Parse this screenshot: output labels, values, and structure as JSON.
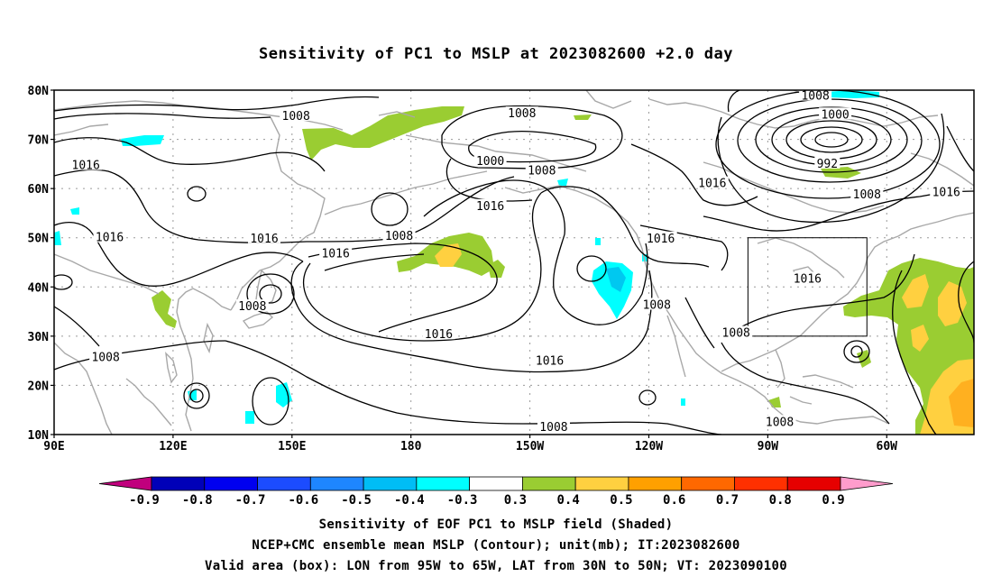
{
  "title": "Sensitivity of PC1 to MSLP at 2023082600 +2.0 day",
  "captions": [
    "Sensitivity of EOF PC1 to MSLP field (Shaded)",
    "NCEP+CMC ensemble mean MSLP (Contour); unit(mb); IT:2023082600",
    "Valid area (box): LON from 95W to 65W, LAT from 30N to 50N; VT: 2023090100"
  ],
  "map": {
    "lat_ticks": [
      {
        "lat": 80,
        "label": "80N"
      },
      {
        "lat": 70,
        "label": "70N"
      },
      {
        "lat": 60,
        "label": "60N"
      },
      {
        "lat": 50,
        "label": "50N"
      },
      {
        "lat": 40,
        "label": "40N"
      },
      {
        "lat": 30,
        "label": "30N"
      },
      {
        "lat": 20,
        "label": "20N"
      },
      {
        "lat": 10,
        "label": "10N"
      }
    ],
    "lon_ticks": [
      {
        "lon": 90,
        "label": "90E"
      },
      {
        "lon": 120,
        "label": "120E"
      },
      {
        "lon": 150,
        "label": "150E"
      },
      {
        "lon": 180,
        "label": "180"
      },
      {
        "lon": 210,
        "label": "150W"
      },
      {
        "lon": 240,
        "label": "120W"
      },
      {
        "lon": 270,
        "label": "90W"
      },
      {
        "lon": 300,
        "label": "60W"
      }
    ],
    "lon_range": [
      90,
      322
    ],
    "lat_range": [
      10,
      80
    ],
    "valid_box": {
      "lon_min": 265,
      "lon_max": 295,
      "lat_min": 30,
      "lat_max": 50
    },
    "contour_labels": [
      {
        "text": "1008",
        "lon": 151,
        "lat": 74.7
      },
      {
        "text": "1016",
        "lon": 98,
        "lat": 64.7
      },
      {
        "text": "1008",
        "lon": 208,
        "lat": 75.2
      },
      {
        "text": "1000",
        "lon": 200,
        "lat": 65.5
      },
      {
        "text": "1008",
        "lon": 213,
        "lat": 63.6
      },
      {
        "text": "1008",
        "lon": 282,
        "lat": 78.8
      },
      {
        "text": "1000",
        "lon": 287,
        "lat": 75.0
      },
      {
        "text": "992",
        "lon": 285,
        "lat": 65.0
      },
      {
        "text": "1016",
        "lon": 256,
        "lat": 61.0
      },
      {
        "text": "1008",
        "lon": 295,
        "lat": 58.7
      },
      {
        "text": "1016",
        "lon": 315,
        "lat": 59.2
      },
      {
        "text": "1016",
        "lon": 104,
        "lat": 50.0
      },
      {
        "text": "1016",
        "lon": 143,
        "lat": 49.8
      },
      {
        "text": "1008",
        "lon": 177,
        "lat": 50.3
      },
      {
        "text": "1016",
        "lon": 200,
        "lat": 56.4
      },
      {
        "text": "1016",
        "lon": 161,
        "lat": 46.7
      },
      {
        "text": "1016",
        "lon": 243,
        "lat": 49.8
      },
      {
        "text": "1016",
        "lon": 280,
        "lat": 41.6
      },
      {
        "text": "1008",
        "lon": 140,
        "lat": 36.0
      },
      {
        "text": "1008",
        "lon": 242,
        "lat": 36.3
      },
      {
        "text": "1016",
        "lon": 187,
        "lat": 30.3
      },
      {
        "text": "1008",
        "lon": 262,
        "lat": 30.6
      },
      {
        "text": "1008",
        "lon": 103,
        "lat": 25.7
      },
      {
        "text": "1016",
        "lon": 215,
        "lat": 24.9
      },
      {
        "text": "1008",
        "lon": 216,
        "lat": 11.5
      },
      {
        "text": "1008",
        "lon": 273,
        "lat": 12.5
      }
    ]
  },
  "colorbar": {
    "colors": [
      "#c0007d",
      "#0000b8",
      "#0000f0",
      "#1c4cff",
      "#1e86ff",
      "#00bdf5",
      "#00ffff",
      "#ffffff",
      "#9acd32",
      "#ffd040",
      "#ffa000",
      "#ff6800",
      "#ff3000",
      "#e60000",
      "#ff9ccc"
    ],
    "labels": [
      "-0.9",
      "-0.8",
      "-0.7",
      "-0.6",
      "-0.5",
      "-0.4",
      "-0.3",
      "0.3",
      "0.4",
      "0.5",
      "0.6",
      "0.7",
      "0.8",
      "0.9"
    ]
  },
  "shading_colors": {
    "green": "#9acd32",
    "yellow": "#ffd040",
    "orange": "#ffb020",
    "cyan": "#00ffff",
    "cyan_dark": "#00c8f0"
  }
}
